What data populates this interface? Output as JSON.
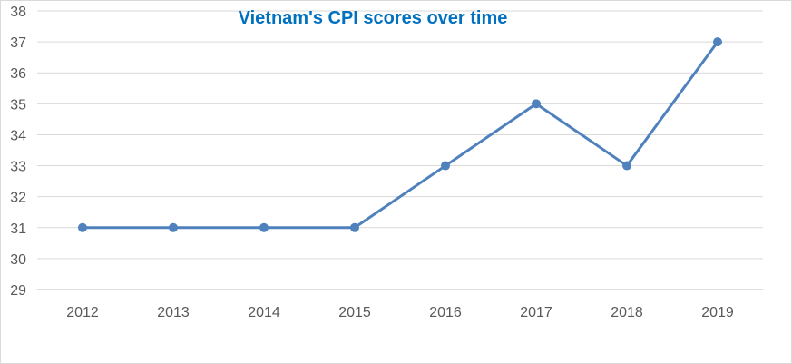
{
  "chart_data": {
    "type": "line",
    "title": "Vietnam's CPI scores over time",
    "xlabel": "",
    "ylabel": "",
    "x": [
      "2012",
      "2013",
      "2014",
      "2015",
      "2016",
      "2017",
      "2018",
      "2019"
    ],
    "series": [
      {
        "values": [
          31,
          31,
          31,
          31,
          33,
          35,
          33,
          37
        ],
        "color": "#4f81bd"
      }
    ],
    "ylim": [
      29,
      38
    ],
    "y_ticks": [
      29,
      30,
      31,
      32,
      33,
      34,
      35,
      36,
      37,
      38
    ],
    "grid": true,
    "markers": true,
    "legend": "none",
    "title_color": "#0070c0"
  }
}
